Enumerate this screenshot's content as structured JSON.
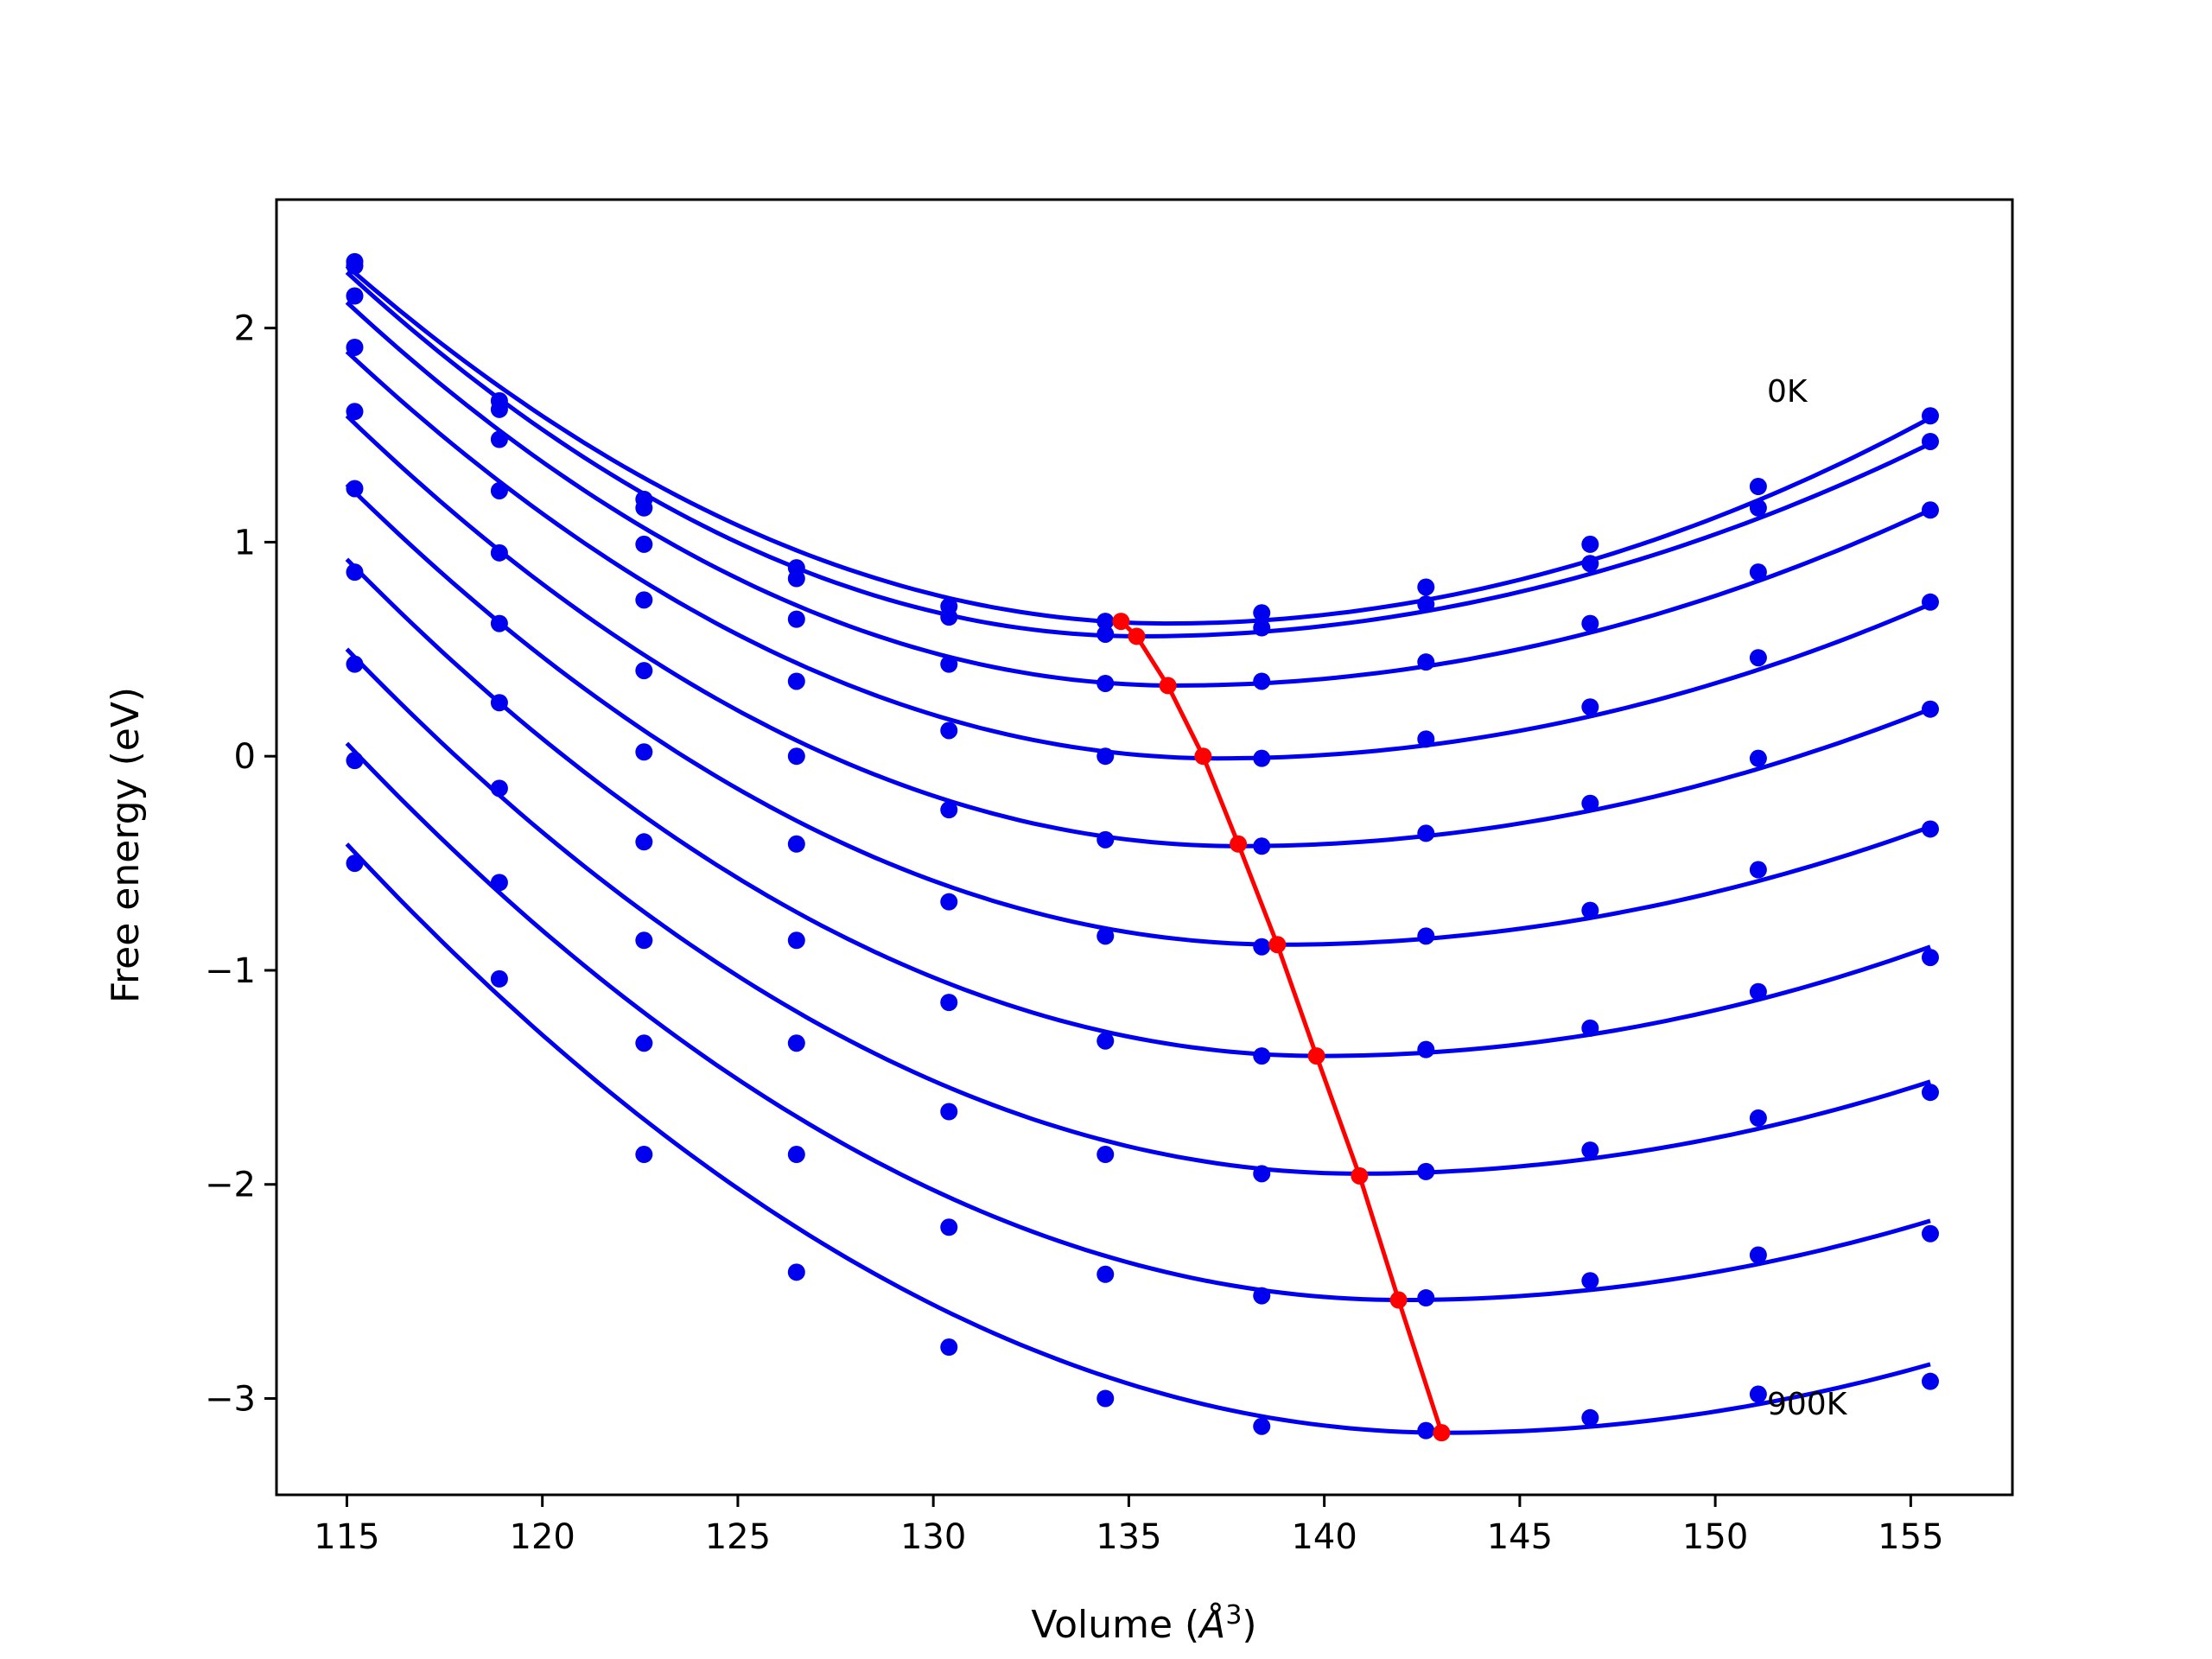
{
  "chart_data": {
    "type": "scatter",
    "title": "",
    "xlabel_main": "Volume (",
    "xlabel_sym": "Å",
    "xlabel_sup": "3",
    "xlabel_tail": ")",
    "ylabel": "Free energy (eV)",
    "xlim": [
      113.2,
      157.6
    ],
    "ylim": [
      -3.45,
      2.6
    ],
    "xticks": [
      115,
      120,
      125,
      130,
      135,
      140,
      145,
      150,
      155
    ],
    "xtick_labels": [
      "115",
      "120",
      "125",
      "130",
      "135",
      "140",
      "145",
      "150",
      "155"
    ],
    "yticks": [
      2,
      1,
      0,
      -1,
      -2,
      -3
    ],
    "ytick_labels": [
      "2",
      "1",
      "0",
      "−1",
      "−2",
      "−3"
    ],
    "grid": false,
    "annotations": [
      {
        "text": "0K",
        "x": 151.1,
        "y": 1.7
      },
      {
        "text": "900K",
        "x": 151.1,
        "y": -3.0
      }
    ],
    "x": [
      115.2,
      118.9,
      122.6,
      126.5,
      130.4,
      134.4,
      138.4,
      142.6,
      146.8,
      151.1,
      155.5
    ],
    "series": [
      {
        "values": [
          2.31,
          1.66,
          1.2,
          0.88,
          0.7,
          0.63,
          0.67,
          0.79,
          0.99,
          1.26,
          1.59
        ]
      },
      {
        "values": [
          2.29,
          1.62,
          1.16,
          0.83,
          0.65,
          0.57,
          0.6,
          0.71,
          0.9,
          1.16,
          1.47
        ]
      },
      {
        "values": [
          2.15,
          1.48,
          0.99,
          0.64,
          0.43,
          0.34,
          0.35,
          0.44,
          0.62,
          0.86,
          1.15
        ]
      },
      {
        "values": [
          1.91,
          1.24,
          0.73,
          0.35,
          0.12,
          0.0,
          -0.01,
          0.08,
          0.23,
          0.46,
          0.72
        ]
      },
      {
        "values": [
          1.61,
          0.95,
          0.4,
          0.0,
          -0.25,
          -0.39,
          -0.42,
          -0.36,
          -0.22,
          -0.01,
          0.22
        ]
      },
      {
        "values": [
          1.25,
          0.62,
          0.02,
          -0.41,
          -0.68,
          -0.84,
          -0.89,
          -0.84,
          -0.72,
          -0.53,
          -0.34
        ]
      },
      {
        "values": [
          0.86,
          0.25,
          -0.4,
          -0.86,
          -1.15,
          -1.33,
          -1.4,
          -1.37,
          -1.27,
          -1.1,
          -0.94
        ]
      },
      {
        "values": [
          0.43,
          -0.15,
          -0.86,
          -1.34,
          -1.66,
          -1.86,
          -1.95,
          -1.94,
          -1.84,
          -1.69,
          -1.57
        ]
      },
      {
        "values": [
          -0.02,
          -0.59,
          -1.34,
          -1.86,
          -2.2,
          -2.42,
          -2.52,
          -2.53,
          -2.45,
          -2.33,
          -2.23
        ]
      },
      {
        "values": [
          -0.5,
          -1.04,
          -1.86,
          -2.41,
          -2.76,
          -3.0,
          -3.13,
          -3.15,
          -3.09,
          -2.98,
          -2.92
        ]
      }
    ],
    "fits": [
      {
        "start": [
          115.0,
          2.29
        ],
        "vertex": [
          136.0,
          0.62
        ],
        "end": [
          155.5,
          1.58
        ]
      },
      {
        "start": [
          115.0,
          2.26
        ],
        "vertex": [
          135.3,
          0.56
        ],
        "end": [
          155.5,
          1.46
        ]
      },
      {
        "start": [
          115.0,
          2.12
        ],
        "vertex": [
          136.2,
          0.33
        ],
        "end": [
          155.5,
          1.15
        ]
      },
      {
        "start": [
          115.0,
          1.89
        ],
        "vertex": [
          137.3,
          -0.01
        ],
        "end": [
          155.5,
          0.71
        ]
      },
      {
        "start": [
          115.0,
          1.59
        ],
        "vertex": [
          137.8,
          -0.42
        ],
        "end": [
          155.5,
          0.22
        ]
      },
      {
        "start": [
          115.0,
          1.27
        ],
        "vertex": [
          138.9,
          -0.88
        ],
        "end": [
          155.5,
          -0.33
        ]
      },
      {
        "start": [
          115.0,
          0.92
        ],
        "vertex": [
          139.9,
          -1.4
        ],
        "end": [
          155.5,
          -0.89
        ]
      },
      {
        "start": [
          115.0,
          0.5
        ],
        "vertex": [
          140.9,
          -1.95
        ],
        "end": [
          155.5,
          -1.52
        ]
      },
      {
        "start": [
          115.0,
          0.06
        ],
        "vertex": [
          142.0,
          -2.54
        ],
        "end": [
          155.5,
          -2.17
        ]
      },
      {
        "start": [
          115.0,
          -0.41
        ],
        "vertex": [
          143.1,
          -3.16
        ],
        "end": [
          155.5,
          -2.84
        ]
      }
    ],
    "minima": {
      "x": [
        134.8,
        135.2,
        136.0,
        136.9,
        137.8,
        138.8,
        139.8,
        140.9,
        141.9,
        143.0
      ],
      "y": [
        0.63,
        0.56,
        0.33,
        0.0,
        -0.41,
        -0.88,
        -1.4,
        -1.96,
        -2.54,
        -3.16
      ]
    },
    "colors": {
      "series": "#0000ee",
      "minima": "#ff0000",
      "axes": "#000000"
    }
  }
}
